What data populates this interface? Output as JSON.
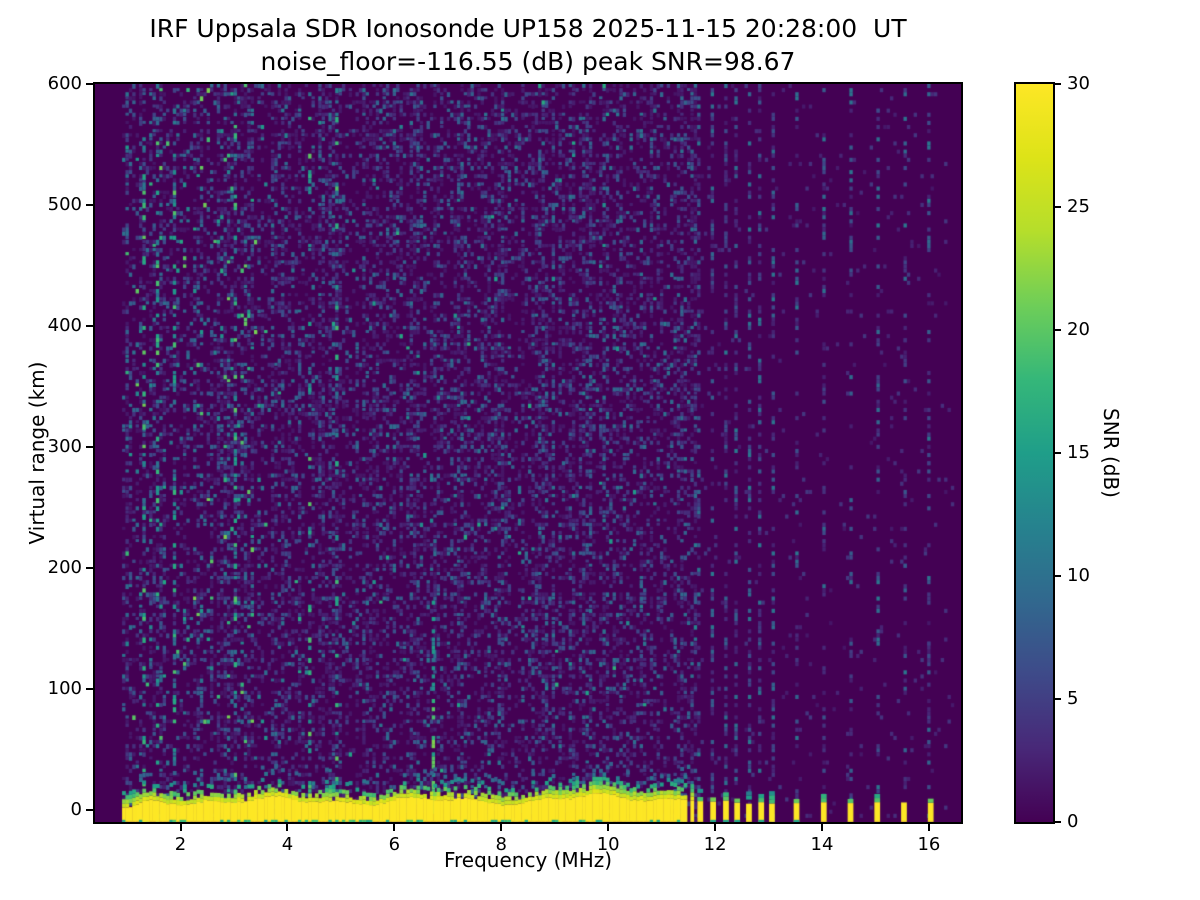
{
  "chart_data": {
    "type": "heatmap",
    "title": "IRF Uppsala SDR Ionosonde UP158 2025-11-15 20:28:00  UT",
    "subtitle": "noise_floor=-116.55 (dB) peak SNR=98.67",
    "station": "UP158",
    "timestamp_ut": "2025-11-15 20:28:00 UT",
    "noise_floor_db": -116.55,
    "peak_snr_db": 98.67,
    "xlabel": "Frequency (MHz)",
    "ylabel": "Virtual range (km)",
    "xlim": [
      0.4,
      16.6
    ],
    "ylim": [
      -10,
      600
    ],
    "x_ticks": [
      2,
      4,
      6,
      8,
      10,
      12,
      14,
      16
    ],
    "y_ticks": [
      0,
      100,
      200,
      300,
      400,
      500,
      600
    ],
    "grid": false,
    "colorbar": {
      "label": "SNR (dB)",
      "range": [
        0,
        30
      ],
      "ticks": [
        0,
        5,
        10,
        15,
        20,
        25,
        30
      ],
      "colormap": "viridis",
      "stops": [
        [
          0.0,
          "#440154"
        ],
        [
          0.1,
          "#482878"
        ],
        [
          0.2,
          "#3e4a89"
        ],
        [
          0.3,
          "#31688e"
        ],
        [
          0.4,
          "#26828e"
        ],
        [
          0.5,
          "#1f9e89"
        ],
        [
          0.6,
          "#35b779"
        ],
        [
          0.7,
          "#6ece58"
        ],
        [
          0.8,
          "#b5de2b"
        ],
        [
          0.9,
          "#dde318"
        ],
        [
          1.0,
          "#fde725"
        ]
      ]
    },
    "background_color": "#440154",
    "features": {
      "sweep_range_mhz": [
        0.88,
        16.45
      ],
      "ground_echo_band": {
        "f_mhz": [
          0.92,
          11.68
        ],
        "range_km": [
          -8,
          12
        ],
        "level": "saturated, >= 30 dB"
      },
      "band_gaps_mhz": [
        11.49,
        11.61
      ],
      "interference_stripes_mhz": [
        11.72,
        11.96,
        12.2,
        12.41,
        12.63,
        12.86,
        13.06,
        13.52,
        14.03,
        14.53,
        15.03,
        15.53,
        16.03
      ],
      "stripe_range_km": [
        -8,
        7
      ],
      "rfi_line": {
        "f_mhz": 6.73,
        "range_km": [
          0,
          210
        ]
      },
      "noisy_band_mhz": [
        0.88,
        3.6
      ],
      "dash_columns_mhz": [
        1.32,
        1.56,
        1.86,
        3.05,
        4.42,
        4.9
      ],
      "background_snr_db": 0
    }
  }
}
